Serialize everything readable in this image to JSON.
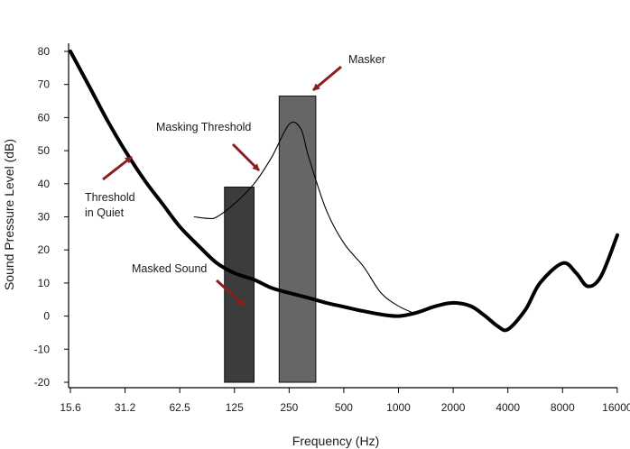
{
  "chart_data": {
    "type": "line",
    "title": "",
    "xlabel": "Frequency (Hz)",
    "ylabel": "Sound Pressure Level (dB)",
    "xscale": "log2",
    "xlim": [
      15.6,
      16000
    ],
    "ylim": [
      -20,
      80
    ],
    "x_ticks": [
      "15.6",
      "31.2",
      "62.5",
      "125",
      "250",
      "500",
      "1000",
      "2000",
      "4000",
      "8000",
      "16000"
    ],
    "y_ticks": [
      "80",
      "70",
      "60",
      "50",
      "40",
      "30",
      "20",
      "10",
      "0",
      "-10",
      "-20"
    ],
    "grid": false,
    "colors": {
      "curve": "#000000",
      "arrow": "#8a1f1f",
      "masker_bar": "#666666",
      "masked_bar": "#3c3c3c"
    },
    "series": [
      {
        "name": "Threshold in Quiet",
        "x": [
          15.6,
          20,
          25,
          31.2,
          40,
          50,
          62.5,
          80,
          100,
          125,
          160,
          200,
          250,
          320,
          400,
          500,
          640,
          800,
          1000,
          1250,
          1600,
          2000,
          2500,
          3000,
          3500,
          4000,
          5000,
          6000,
          8000,
          9500,
          11000,
          13000,
          16000
        ],
        "y": [
          80,
          69,
          59,
          50,
          41,
          34,
          27,
          21,
          16,
          13,
          11,
          8.5,
          7,
          5.5,
          4,
          2.8,
          1.5,
          0.5,
          0,
          1,
          3,
          4,
          3,
          0,
          -3,
          -4,
          2,
          10,
          16,
          13,
          9,
          12,
          24.5
        ]
      },
      {
        "name": "Masking Threshold",
        "x": [
          75,
          90,
          100,
          125,
          160,
          200,
          250,
          290,
          320,
          400,
          500,
          640,
          800,
          1000,
          1200
        ],
        "y": [
          30,
          29.5,
          30,
          34,
          40,
          48,
          58,
          56.5,
          48,
          32,
          22,
          15,
          7,
          3,
          1
        ]
      }
    ],
    "bars": [
      {
        "name": "Masked Sound",
        "x_range": [
          110,
          160
        ],
        "value": 39
      },
      {
        "name": "Masker",
        "x_range": [
          220,
          350
        ],
        "value": 66.5
      }
    ],
    "annotations": [
      {
        "text": "Masker",
        "points_to": "Masker"
      },
      {
        "text": "Masking Threshold",
        "points_to": "Masking Threshold"
      },
      {
        "text": "Threshold",
        "line2": "in Quiet",
        "points_to": "Threshold in Quiet"
      },
      {
        "text": "Masked Sound",
        "points_to": "Masked Sound"
      }
    ]
  }
}
